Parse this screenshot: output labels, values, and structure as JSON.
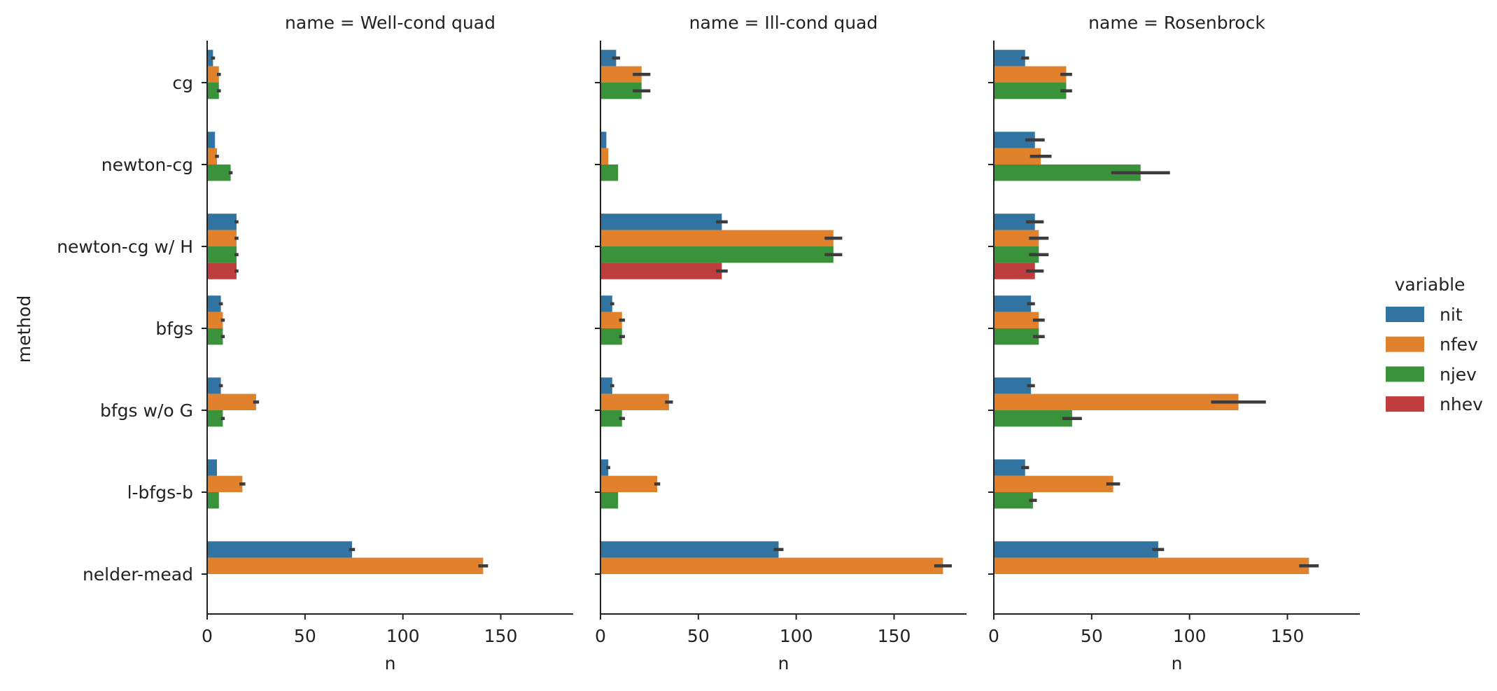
{
  "chart_data": {
    "type": "bar",
    "orientation": "horizontal",
    "facet_label_prefix": "name = ",
    "y_axis_label": "method",
    "x_axis_label": "n",
    "xlim": [
      0,
      187
    ],
    "x_ticks": [
      0,
      50,
      100,
      150
    ],
    "categories": [
      "cg",
      "newton-cg",
      "newton-cg w/ H",
      "bfgs",
      "bfgs w/o G",
      "l-bfgs-b",
      "nelder-mead"
    ],
    "legend": {
      "title": "variable",
      "placement": "right",
      "entries": [
        "nit",
        "nfev",
        "njev",
        "nhev"
      ]
    },
    "colors": {
      "nit": "#3274a1",
      "nfev": "#e1812c",
      "njev": "#3a923a",
      "nhev": "#c03d3e",
      "error_bar": "#3c3c3c",
      "axis": "#222222"
    },
    "panels": [
      {
        "name": "Well-cond quad",
        "series": [
          {
            "name": "nit",
            "values": [
              3,
              4,
              15,
              7,
              7,
              5,
              74
            ],
            "errors": [
              1,
              0,
              1,
              1,
              1,
              0,
              1.5
            ]
          },
          {
            "name": "nfev",
            "values": [
              6,
              5,
              15,
              8,
              25,
              18,
              141
            ],
            "errors": [
              1,
              1,
              1,
              1,
              1.5,
              1.5,
              2.5
            ]
          },
          {
            "name": "njev",
            "values": [
              6,
              12,
              15,
              8,
              8,
              6,
              null
            ],
            "errors": [
              1,
              1,
              1,
              1,
              1,
              0,
              0
            ]
          },
          {
            "name": "nhev",
            "values": [
              null,
              null,
              15,
              null,
              null,
              null,
              null
            ],
            "errors": [
              0,
              0,
              1,
              0,
              0,
              0,
              0
            ]
          }
        ]
      },
      {
        "name": "Ill-cond quad",
        "series": [
          {
            "name": "nit",
            "values": [
              8,
              3,
              62,
              6,
              6,
              4,
              91
            ],
            "errors": [
              2,
              0,
              3,
              1,
              1,
              1,
              2.5
            ]
          },
          {
            "name": "nfev",
            "values": [
              21,
              4,
              119,
              11,
              35,
              29,
              175
            ],
            "errors": [
              4.5,
              0,
              4.5,
              1.5,
              2,
              1.5,
              4.5
            ]
          },
          {
            "name": "njev",
            "values": [
              21,
              9,
              119,
              11,
              11,
              9,
              null
            ],
            "errors": [
              4.5,
              0,
              4.5,
              1.5,
              1.5,
              0,
              0
            ]
          },
          {
            "name": "nhev",
            "values": [
              null,
              null,
              62,
              null,
              null,
              null,
              null
            ],
            "errors": [
              0,
              0,
              3,
              0,
              0,
              0,
              0
            ]
          }
        ]
      },
      {
        "name": "Rosenbrock",
        "series": [
          {
            "name": "nit",
            "values": [
              16,
              21,
              21,
              19,
              19,
              16,
              84
            ],
            "errors": [
              2,
              5,
              4.5,
              2,
              2,
              2,
              3
            ]
          },
          {
            "name": "nfev",
            "values": [
              37,
              24,
              23,
              23,
              125,
              61,
              161
            ],
            "errors": [
              3,
              5.5,
              5,
              3,
              14,
              3.5,
              5
            ]
          },
          {
            "name": "njev",
            "values": [
              37,
              75,
              23,
              23,
              40,
              20,
              null
            ],
            "errors": [
              3,
              15,
              5,
              3,
              5,
              2,
              0
            ]
          },
          {
            "name": "nhev",
            "values": [
              null,
              null,
              21,
              null,
              null,
              null,
              null
            ],
            "errors": [
              0,
              0,
              4.5,
              0,
              0,
              0,
              0
            ]
          }
        ]
      }
    ]
  }
}
